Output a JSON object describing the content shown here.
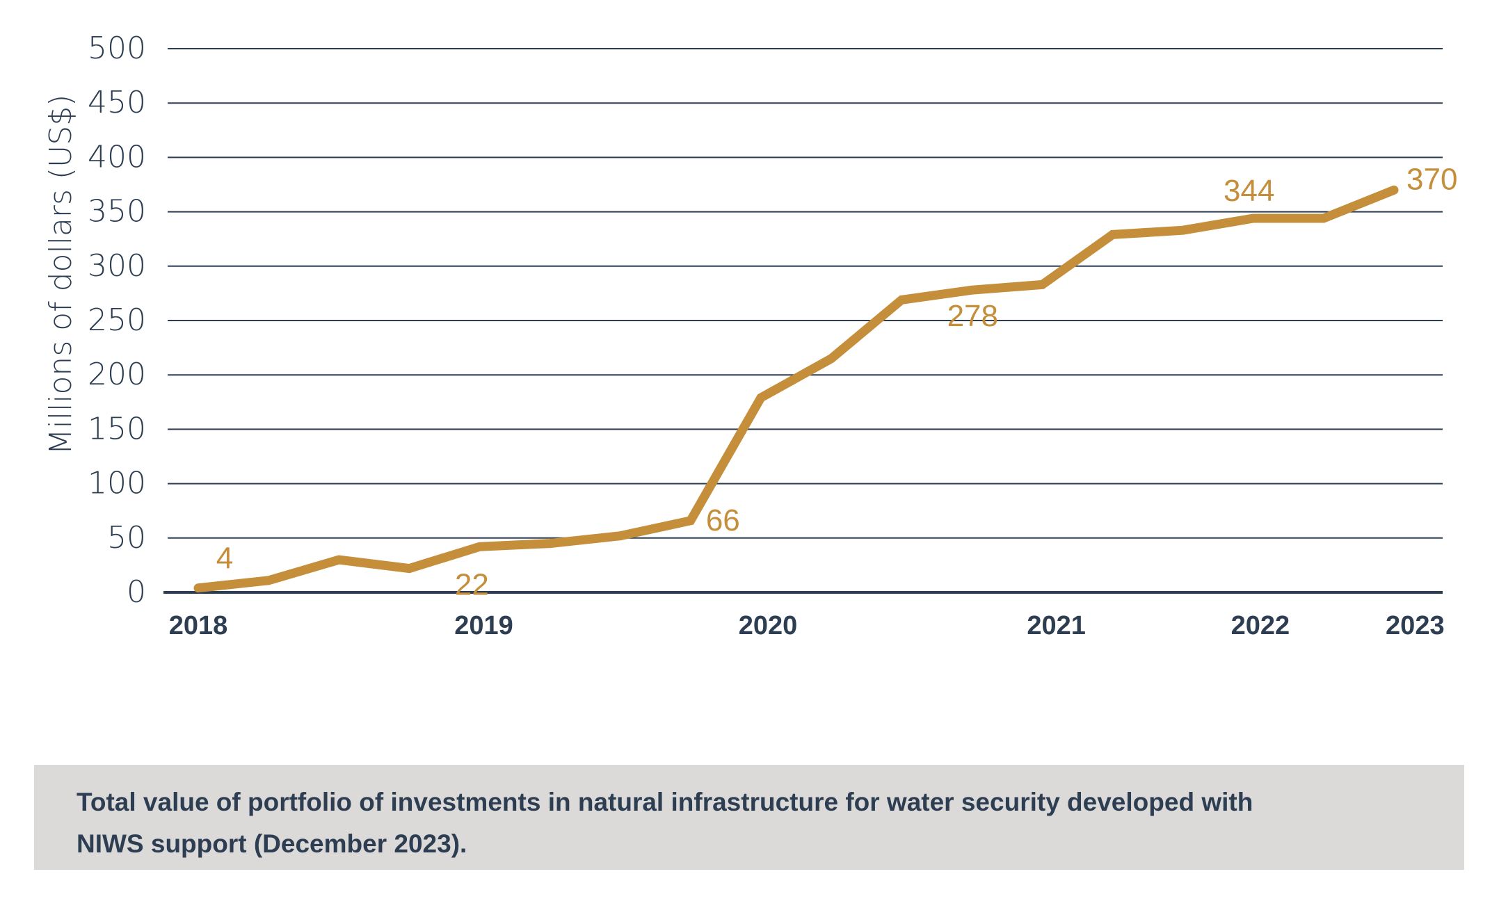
{
  "chart_data": {
    "type": "line",
    "title": "",
    "xlabel": "",
    "ylabel": "Millions of dollars (US$)",
    "ylim": [
      0,
      500
    ],
    "yticks": [
      0,
      50,
      100,
      150,
      200,
      250,
      300,
      350,
      400,
      450,
      500
    ],
    "grid": true,
    "legend": "none",
    "x_points": 18,
    "xticks": [
      {
        "label": "2018",
        "position": 0
      },
      {
        "label": "2019",
        "position": 4.06
      },
      {
        "label": "2020",
        "position": 8.1
      },
      {
        "label": "2021",
        "position": 12.2
      },
      {
        "label": "2022",
        "position": 15.1
      },
      {
        "label": "2023",
        "position": 17.3
      }
    ],
    "series": [
      {
        "name": "Total portfolio value",
        "color": "#C48E3A",
        "values": [
          4,
          11,
          30,
          22,
          42,
          45,
          52,
          66,
          179,
          215,
          269,
          278,
          283,
          329,
          333,
          344,
          344,
          370
        ]
      }
    ],
    "annotations": [
      {
        "text": "4",
        "point_index": 0,
        "position": "above-right"
      },
      {
        "text": "22",
        "point_index": 3,
        "position": "below-right"
      },
      {
        "text": "66",
        "point_index": 7,
        "position": "right"
      },
      {
        "text": "278",
        "point_index": 11,
        "position": "below"
      },
      {
        "text": "344",
        "point_index": 15,
        "position": "above"
      },
      {
        "text": "370",
        "point_index": 17,
        "position": "right"
      }
    ]
  },
  "colors": {
    "series": "#C48E3A",
    "text": "#2E3E52",
    "caption_background": "#DCDAD9"
  },
  "caption": {
    "line1": "Total value of portfolio of investments in natural infrastructure for water security developed with",
    "line2": "NIWS support (December 2023)."
  }
}
